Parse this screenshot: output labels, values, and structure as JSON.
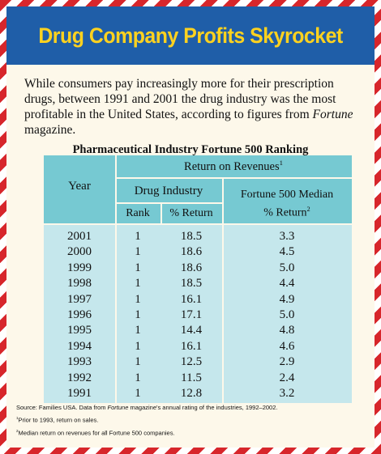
{
  "title": "Drug Company Profits Skyrocket",
  "intro_before": "While consumers pay increasingly more for their prescription drugs, between 1991 and 2001 the drug industry was the most profitable in the United States, according to figures from ",
  "intro_source": "Fortune",
  "intro_after": " magazine.",
  "chart_data": {
    "type": "table",
    "title": "Pharmaceutical Industry Fortune 500 Ranking",
    "headers": {
      "year": "Year",
      "return_on_revenues": "Return on Revenues",
      "return_on_revenues_note": "1",
      "drug_industry": "Drug Industry",
      "rank": "Rank",
      "pct_return": "% Return",
      "median_line1": "Fortune 500 Median",
      "median_line2": "% Return",
      "median_note": "2"
    },
    "rows": [
      {
        "year": "2001",
        "rank": "1",
        "pct_return": "18.5",
        "median": "3.3"
      },
      {
        "year": "2000",
        "rank": "1",
        "pct_return": "18.6",
        "median": "4.5"
      },
      {
        "year": "1999",
        "rank": "1",
        "pct_return": "18.6",
        "median": "5.0"
      },
      {
        "year": "1998",
        "rank": "1",
        "pct_return": "18.5",
        "median": "4.4"
      },
      {
        "year": "1997",
        "rank": "1",
        "pct_return": "16.1",
        "median": "4.9"
      },
      {
        "year": "1996",
        "rank": "1",
        "pct_return": "17.1",
        "median": "5.0"
      },
      {
        "year": "1995",
        "rank": "1",
        "pct_return": "14.4",
        "median": "4.8"
      },
      {
        "year": "1994",
        "rank": "1",
        "pct_return": "16.1",
        "median": "4.6"
      },
      {
        "year": "1993",
        "rank": "1",
        "pct_return": "12.5",
        "median": "2.9"
      },
      {
        "year": "1992",
        "rank": "1",
        "pct_return": "11.5",
        "median": "2.4"
      },
      {
        "year": "1991",
        "rank": "1",
        "pct_return": "12.8",
        "median": "3.2"
      }
    ]
  },
  "notes": {
    "source_before": "Source: Families USA. Data from ",
    "source_mag": "Fortune",
    "source_after": " magazine's annual rating of the industries, 1992–2002.",
    "note1_mark": "1",
    "note1": "Prior to 1993, return on sales.",
    "note2_mark": "2",
    "note2": "Median return on revenues for all Fortune 500 companies."
  },
  "colors": {
    "title_bar": "#1f5ea8",
    "title_text": "#ffd21f",
    "border_red": "#d7262b",
    "header_fill": "#76c9d2",
    "body_fill": "#c5e7ec",
    "panel_bg": "#fdf8ea"
  }
}
